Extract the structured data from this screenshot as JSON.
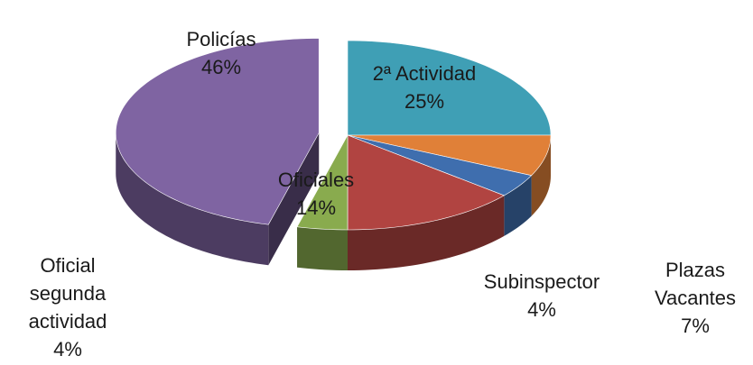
{
  "chart_data": {
    "type": "pie",
    "categories": [
      "2ª Actividad",
      "Plazas Vacantes",
      "Subinspector",
      "Oficiales",
      "Oficial segunda actividad",
      "Policías"
    ],
    "values": [
      25,
      7,
      4,
      14,
      4,
      46
    ],
    "value_labels": [
      "25%",
      "7%",
      "4%",
      "14%",
      "4%",
      "46%"
    ],
    "colors": [
      "#3f9fb5",
      "#e08038",
      "#3f6eae",
      "#b14441",
      "#89ab4e",
      "#7f64a2"
    ],
    "exploded": [
      5
    ]
  }
}
